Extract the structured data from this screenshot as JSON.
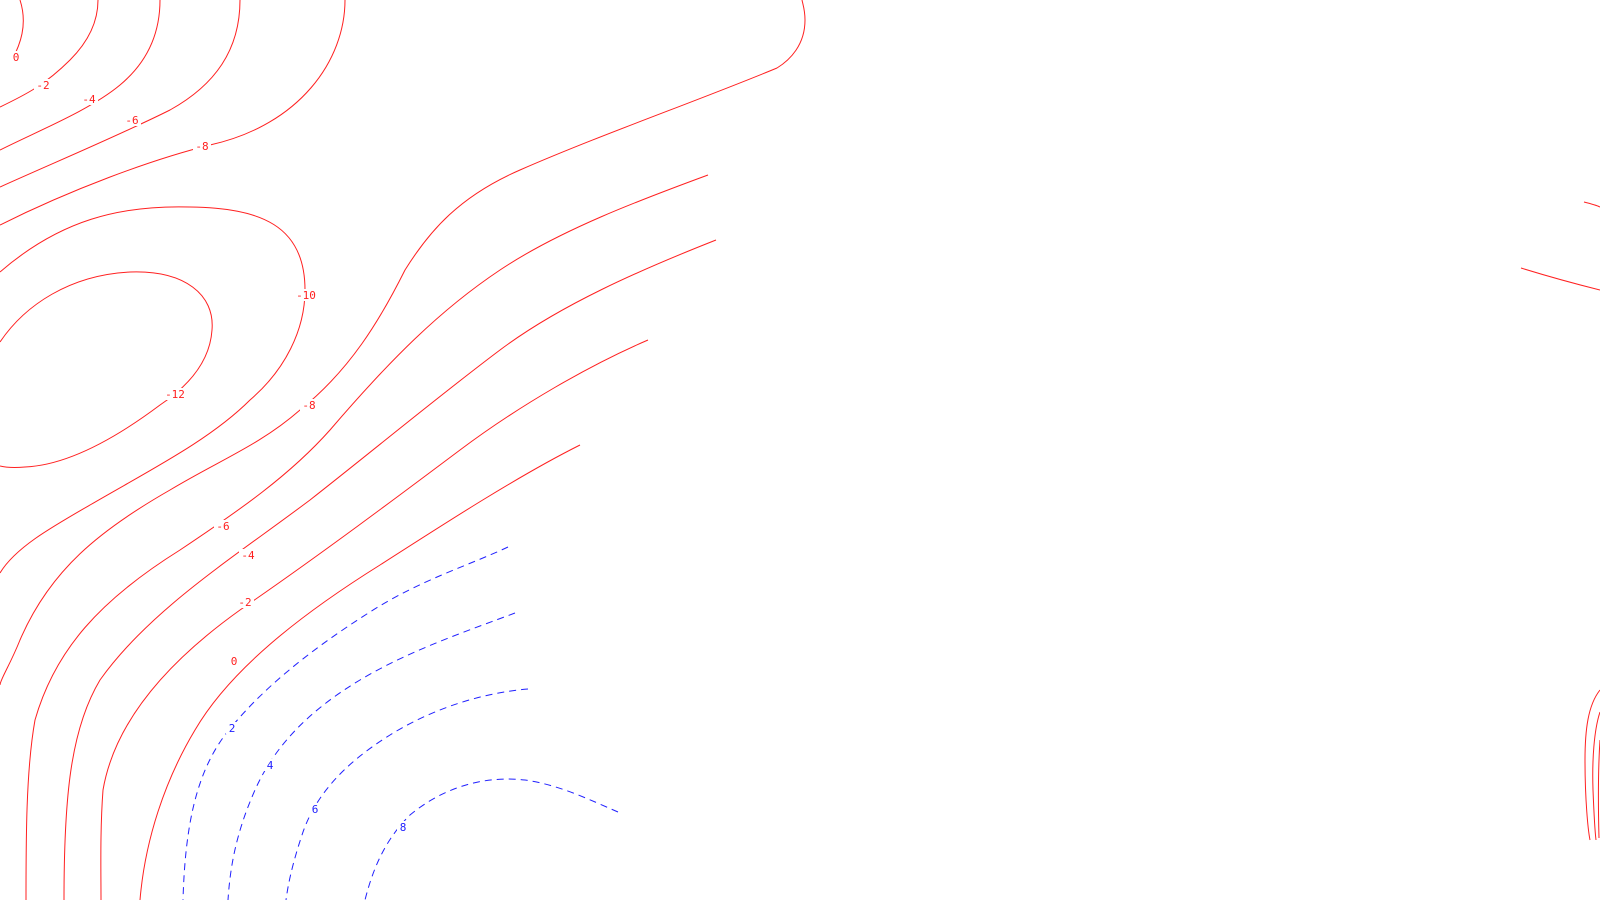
{
  "colors": {
    "background": "#ffffff",
    "negative_contours": "#ff2020",
    "positive_contours": "#2020ff"
  },
  "labels": {
    "c0_upper": "0",
    "cm2_upper": "-2",
    "cm4_upper": "-4",
    "cm6_upper": "-6",
    "cm8_upper": "-8",
    "cm10": "-10",
    "cm12": "-12",
    "cm8_mid": "-8",
    "cm6_lower": "-6",
    "cm4_lower": "-4",
    "cm2_lower": "-2",
    "c0_lower": "0",
    "c2": "2",
    "c4": "4",
    "c6": "6",
    "c8": "8"
  }
}
